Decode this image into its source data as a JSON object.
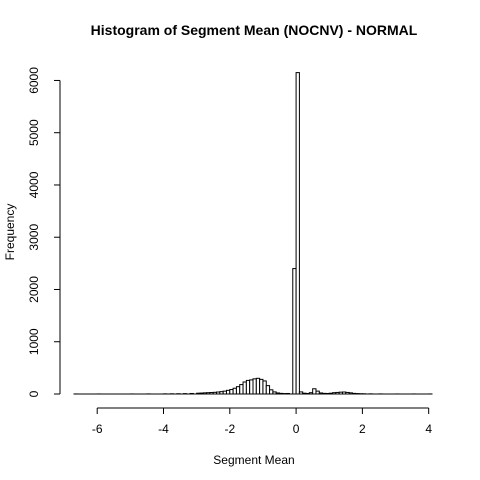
{
  "chart_data": {
    "type": "bar",
    "title": "Histogram of Segment Mean (NOCNV) - NORMAL",
    "xlabel": "Segment Mean",
    "ylabel": "Frequency",
    "xlim": [
      -6.7,
      4.1
    ],
    "ylim": [
      0,
      6200
    ],
    "xticks": [
      -6,
      -4,
      -2,
      0,
      2,
      4
    ],
    "yticks": [
      0,
      1000,
      2000,
      3000,
      4000,
      5000,
      6000
    ],
    "bin_width": 0.1,
    "grid": false,
    "legend": "none",
    "bins": [
      {
        "x0": -6.7,
        "count": 1
      },
      {
        "x0": -6.0,
        "count": 1
      },
      {
        "x0": -5.0,
        "count": 1
      },
      {
        "x0": -4.5,
        "count": 2
      },
      {
        "x0": -4.0,
        "count": 3
      },
      {
        "x0": -3.8,
        "count": 4
      },
      {
        "x0": -3.6,
        "count": 5
      },
      {
        "x0": -3.4,
        "count": 7
      },
      {
        "x0": -3.2,
        "count": 10
      },
      {
        "x0": -3.0,
        "count": 15
      },
      {
        "x0": -2.9,
        "count": 18
      },
      {
        "x0": -2.8,
        "count": 22
      },
      {
        "x0": -2.7,
        "count": 25
      },
      {
        "x0": -2.6,
        "count": 28
      },
      {
        "x0": -2.5,
        "count": 32
      },
      {
        "x0": -2.4,
        "count": 38
      },
      {
        "x0": -2.3,
        "count": 45
      },
      {
        "x0": -2.2,
        "count": 55
      },
      {
        "x0": -2.1,
        "count": 70
      },
      {
        "x0": -2.0,
        "count": 85
      },
      {
        "x0": -1.9,
        "count": 110
      },
      {
        "x0": -1.8,
        "count": 140
      },
      {
        "x0": -1.7,
        "count": 180
      },
      {
        "x0": -1.6,
        "count": 230
      },
      {
        "x0": -1.5,
        "count": 260
      },
      {
        "x0": -1.4,
        "count": 270
      },
      {
        "x0": -1.3,
        "count": 290
      },
      {
        "x0": -1.2,
        "count": 300
      },
      {
        "x0": -1.1,
        "count": 280
      },
      {
        "x0": -1.0,
        "count": 250
      },
      {
        "x0": -0.9,
        "count": 160
      },
      {
        "x0": -0.8,
        "count": 80
      },
      {
        "x0": -0.7,
        "count": 40
      },
      {
        "x0": -0.6,
        "count": 20
      },
      {
        "x0": -0.5,
        "count": 12
      },
      {
        "x0": -0.4,
        "count": 8
      },
      {
        "x0": -0.3,
        "count": 10
      },
      {
        "x0": -0.1,
        "count": 2400
      },
      {
        "x0": 0.0,
        "count": 6150
      },
      {
        "x0": 0.1,
        "count": 40
      },
      {
        "x0": 0.2,
        "count": 15
      },
      {
        "x0": 0.3,
        "count": 10
      },
      {
        "x0": 0.4,
        "count": 25
      },
      {
        "x0": 0.5,
        "count": 100
      },
      {
        "x0": 0.6,
        "count": 55
      },
      {
        "x0": 0.7,
        "count": 20
      },
      {
        "x0": 0.8,
        "count": 12
      },
      {
        "x0": 0.9,
        "count": 10
      },
      {
        "x0": 1.0,
        "count": 15
      },
      {
        "x0": 1.1,
        "count": 25
      },
      {
        "x0": 1.2,
        "count": 30
      },
      {
        "x0": 1.3,
        "count": 35
      },
      {
        "x0": 1.4,
        "count": 38
      },
      {
        "x0": 1.5,
        "count": 30
      },
      {
        "x0": 1.6,
        "count": 22
      },
      {
        "x0": 1.7,
        "count": 12
      },
      {
        "x0": 1.8,
        "count": 8
      },
      {
        "x0": 1.9,
        "count": 5
      },
      {
        "x0": 2.0,
        "count": 4
      },
      {
        "x0": 2.2,
        "count": 3
      },
      {
        "x0": 2.5,
        "count": 2
      },
      {
        "x0": 3.0,
        "count": 1
      },
      {
        "x0": 3.5,
        "count": 1
      },
      {
        "x0": 4.0,
        "count": 1
      }
    ]
  }
}
